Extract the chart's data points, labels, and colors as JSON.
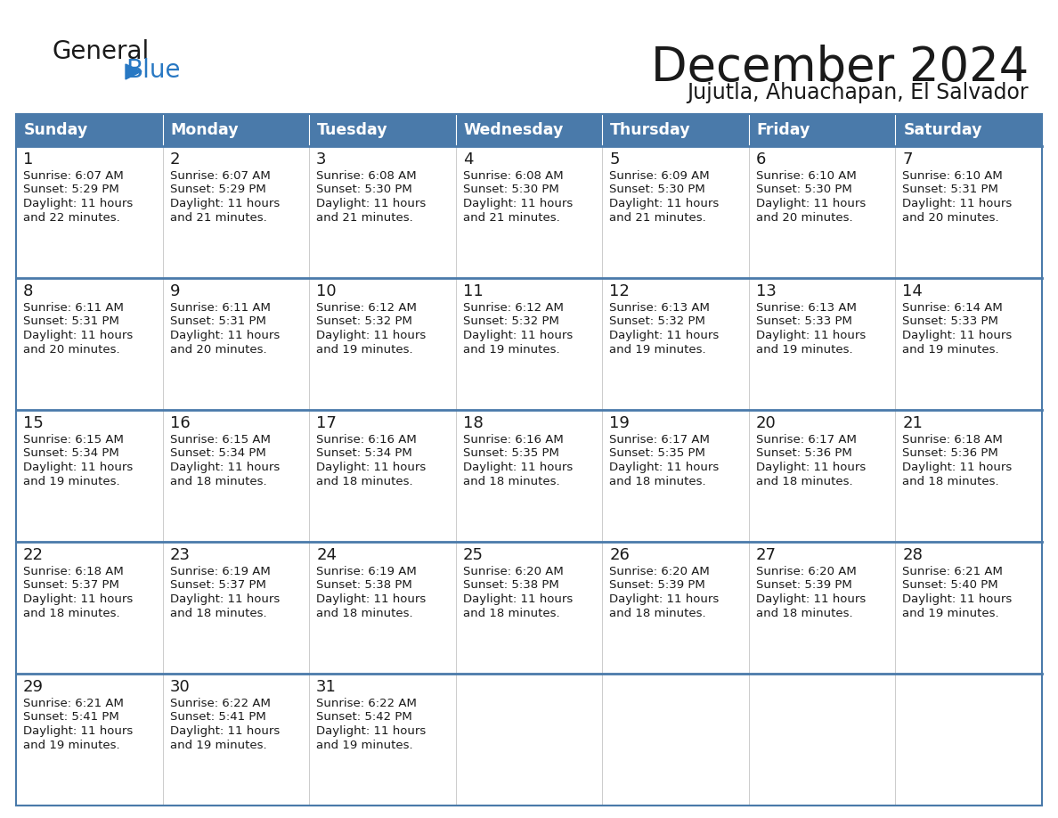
{
  "title": "December 2024",
  "subtitle": "Jujutla, Ahuachapan, El Salvador",
  "header_color": "#4a7aaa",
  "header_text_color": "#ffffff",
  "row_sep_color": "#4a7aaa",
  "cell_bg_even": "#f0f0f0",
  "cell_bg_odd": "#ffffff",
  "cell_text_color": "#1a1a1a",
  "day_names": [
    "Sunday",
    "Monday",
    "Tuesday",
    "Wednesday",
    "Thursday",
    "Friday",
    "Saturday"
  ],
  "weeks": [
    [
      {
        "day": 1,
        "sunrise": "6:07 AM",
        "sunset": "5:29 PM",
        "daylight_h": "11 hours",
        "daylight_m": "and 22 minutes."
      },
      {
        "day": 2,
        "sunrise": "6:07 AM",
        "sunset": "5:29 PM",
        "daylight_h": "11 hours",
        "daylight_m": "and 21 minutes."
      },
      {
        "day": 3,
        "sunrise": "6:08 AM",
        "sunset": "5:30 PM",
        "daylight_h": "11 hours",
        "daylight_m": "and 21 minutes."
      },
      {
        "day": 4,
        "sunrise": "6:08 AM",
        "sunset": "5:30 PM",
        "daylight_h": "11 hours",
        "daylight_m": "and 21 minutes."
      },
      {
        "day": 5,
        "sunrise": "6:09 AM",
        "sunset": "5:30 PM",
        "daylight_h": "11 hours",
        "daylight_m": "and 21 minutes."
      },
      {
        "day": 6,
        "sunrise": "6:10 AM",
        "sunset": "5:30 PM",
        "daylight_h": "11 hours",
        "daylight_m": "and 20 minutes."
      },
      {
        "day": 7,
        "sunrise": "6:10 AM",
        "sunset": "5:31 PM",
        "daylight_h": "11 hours",
        "daylight_m": "and 20 minutes."
      }
    ],
    [
      {
        "day": 8,
        "sunrise": "6:11 AM",
        "sunset": "5:31 PM",
        "daylight_h": "11 hours",
        "daylight_m": "and 20 minutes."
      },
      {
        "day": 9,
        "sunrise": "6:11 AM",
        "sunset": "5:31 PM",
        "daylight_h": "11 hours",
        "daylight_m": "and 20 minutes."
      },
      {
        "day": 10,
        "sunrise": "6:12 AM",
        "sunset": "5:32 PM",
        "daylight_h": "11 hours",
        "daylight_m": "and 19 minutes."
      },
      {
        "day": 11,
        "sunrise": "6:12 AM",
        "sunset": "5:32 PM",
        "daylight_h": "11 hours",
        "daylight_m": "and 19 minutes."
      },
      {
        "day": 12,
        "sunrise": "6:13 AM",
        "sunset": "5:32 PM",
        "daylight_h": "11 hours",
        "daylight_m": "and 19 minutes."
      },
      {
        "day": 13,
        "sunrise": "6:13 AM",
        "sunset": "5:33 PM",
        "daylight_h": "11 hours",
        "daylight_m": "and 19 minutes."
      },
      {
        "day": 14,
        "sunrise": "6:14 AM",
        "sunset": "5:33 PM",
        "daylight_h": "11 hours",
        "daylight_m": "and 19 minutes."
      }
    ],
    [
      {
        "day": 15,
        "sunrise": "6:15 AM",
        "sunset": "5:34 PM",
        "daylight_h": "11 hours",
        "daylight_m": "and 19 minutes."
      },
      {
        "day": 16,
        "sunrise": "6:15 AM",
        "sunset": "5:34 PM",
        "daylight_h": "11 hours",
        "daylight_m": "and 18 minutes."
      },
      {
        "day": 17,
        "sunrise": "6:16 AM",
        "sunset": "5:34 PM",
        "daylight_h": "11 hours",
        "daylight_m": "and 18 minutes."
      },
      {
        "day": 18,
        "sunrise": "6:16 AM",
        "sunset": "5:35 PM",
        "daylight_h": "11 hours",
        "daylight_m": "and 18 minutes."
      },
      {
        "day": 19,
        "sunrise": "6:17 AM",
        "sunset": "5:35 PM",
        "daylight_h": "11 hours",
        "daylight_m": "and 18 minutes."
      },
      {
        "day": 20,
        "sunrise": "6:17 AM",
        "sunset": "5:36 PM",
        "daylight_h": "11 hours",
        "daylight_m": "and 18 minutes."
      },
      {
        "day": 21,
        "sunrise": "6:18 AM",
        "sunset": "5:36 PM",
        "daylight_h": "11 hours",
        "daylight_m": "and 18 minutes."
      }
    ],
    [
      {
        "day": 22,
        "sunrise": "6:18 AM",
        "sunset": "5:37 PM",
        "daylight_h": "11 hours",
        "daylight_m": "and 18 minutes."
      },
      {
        "day": 23,
        "sunrise": "6:19 AM",
        "sunset": "5:37 PM",
        "daylight_h": "11 hours",
        "daylight_m": "and 18 minutes."
      },
      {
        "day": 24,
        "sunrise": "6:19 AM",
        "sunset": "5:38 PM",
        "daylight_h": "11 hours",
        "daylight_m": "and 18 minutes."
      },
      {
        "day": 25,
        "sunrise": "6:20 AM",
        "sunset": "5:38 PM",
        "daylight_h": "11 hours",
        "daylight_m": "and 18 minutes."
      },
      {
        "day": 26,
        "sunrise": "6:20 AM",
        "sunset": "5:39 PM",
        "daylight_h": "11 hours",
        "daylight_m": "and 18 minutes."
      },
      {
        "day": 27,
        "sunrise": "6:20 AM",
        "sunset": "5:39 PM",
        "daylight_h": "11 hours",
        "daylight_m": "and 18 minutes."
      },
      {
        "day": 28,
        "sunrise": "6:21 AM",
        "sunset": "5:40 PM",
        "daylight_h": "11 hours",
        "daylight_m": "and 19 minutes."
      }
    ],
    [
      {
        "day": 29,
        "sunrise": "6:21 AM",
        "sunset": "5:41 PM",
        "daylight_h": "11 hours",
        "daylight_m": "and 19 minutes."
      },
      {
        "day": 30,
        "sunrise": "6:22 AM",
        "sunset": "5:41 PM",
        "daylight_h": "11 hours",
        "daylight_m": "and 19 minutes."
      },
      {
        "day": 31,
        "sunrise": "6:22 AM",
        "sunset": "5:42 PM",
        "daylight_h": "11 hours",
        "daylight_m": "and 19 minutes."
      },
      null,
      null,
      null,
      null
    ]
  ]
}
